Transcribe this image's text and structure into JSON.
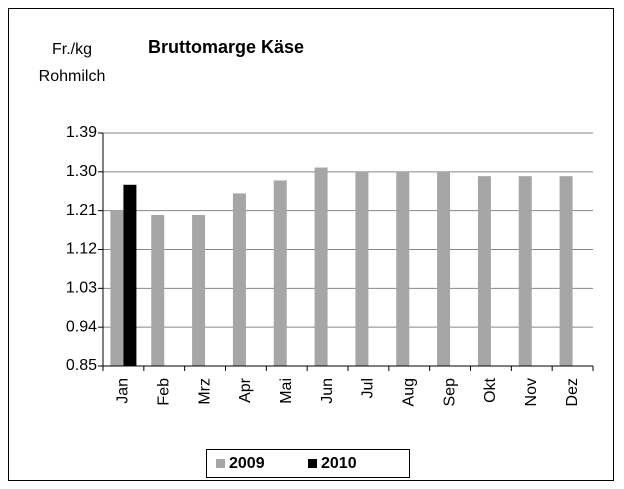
{
  "chart_data": {
    "type": "bar",
    "title": "Bruttomarge Käse",
    "ylabel": [
      "Fr./kg",
      "Rohmilch"
    ],
    "categories": [
      "Jan",
      "Feb",
      "Mrz",
      "Apr",
      "Mai",
      "Jun",
      "Jul",
      "Aug",
      "Sep",
      "Okt",
      "Nov",
      "Dez"
    ],
    "series": [
      {
        "name": "2009",
        "color": "#a6a6a6",
        "values": [
          1.21,
          1.2,
          1.2,
          1.25,
          1.28,
          1.31,
          1.3,
          1.3,
          1.3,
          1.29,
          1.29,
          1.29
        ]
      },
      {
        "name": "2010",
        "color": "#000000",
        "values": [
          1.27,
          null,
          null,
          null,
          null,
          null,
          null,
          null,
          null,
          null,
          null,
          null
        ]
      }
    ],
    "ylim": [
      0.85,
      1.39
    ],
    "yticks": [
      0.85,
      0.94,
      1.03,
      1.12,
      1.21,
      {
        "value": 1.3,
        "label": "1.30"
      },
      1.39
    ],
    "grid": true,
    "legend": "bottom"
  }
}
